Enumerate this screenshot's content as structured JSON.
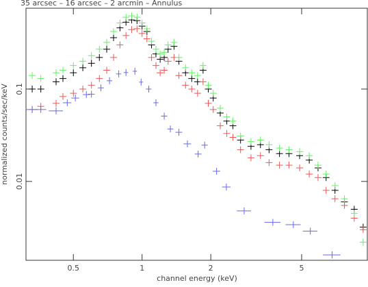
{
  "chart_data": {
    "type": "scatter",
    "title": "35 arcsec – 16 arcsec – 2 arcmin – Annulus",
    "x_label": "channel energy (keV)",
    "y_label": "normalized counts/sec/keV",
    "xlog": true,
    "ylog": true,
    "xlim": [
      0.31,
      9.7
    ],
    "ylim": [
      0.0014,
      0.75
    ],
    "xticks": [
      0.5,
      1,
      2,
      5
    ],
    "yticks": [
      0.01,
      0.1
    ],
    "series": [
      {
        "color": "#000000",
        "x": [
          0.33,
          0.36,
          0.42,
          0.45,
          0.5,
          0.55,
          0.6,
          0.65,
          0.7,
          0.75,
          0.8,
          0.85,
          0.9,
          0.95,
          1.0,
          1.05,
          1.1,
          1.15,
          1.2,
          1.25,
          1.3,
          1.38,
          1.45,
          1.55,
          1.65,
          1.75,
          1.85,
          1.95,
          2.05,
          2.2,
          2.35,
          2.5,
          2.7,
          3.0,
          3.3,
          3.6,
          4.0,
          4.4,
          4.9,
          5.4,
          5.9,
          6.4,
          7.0,
          7.7,
          8.5,
          9.3
        ],
        "values": [
          0.1,
          0.1,
          0.12,
          0.13,
          0.15,
          0.17,
          0.19,
          0.22,
          0.27,
          0.36,
          0.46,
          0.53,
          0.56,
          0.55,
          0.48,
          0.42,
          0.3,
          0.24,
          0.21,
          0.22,
          0.27,
          0.29,
          0.2,
          0.15,
          0.13,
          0.12,
          0.16,
          0.1,
          0.08,
          0.055,
          0.045,
          0.04,
          0.028,
          0.024,
          0.025,
          0.022,
          0.02,
          0.02,
          0.019,
          0.017,
          0.014,
          0.011,
          0.008,
          0.006,
          0.005,
          0.0032
        ]
      },
      {
        "color": "#ee5555",
        "x": [
          0.33,
          0.36,
          0.42,
          0.45,
          0.5,
          0.55,
          0.6,
          0.65,
          0.7,
          0.75,
          0.8,
          0.85,
          0.9,
          0.95,
          1.0,
          1.05,
          1.1,
          1.15,
          1.2,
          1.25,
          1.3,
          1.38,
          1.45,
          1.55,
          1.65,
          1.75,
          1.85,
          1.95,
          2.05,
          2.2,
          2.35,
          2.5,
          2.7,
          3.0,
          3.3,
          3.6,
          4.0,
          4.4,
          4.9,
          5.4,
          5.9,
          6.4,
          7.0,
          7.7,
          8.5,
          9.3
        ],
        "values": [
          0.06,
          0.065,
          0.07,
          0.083,
          0.09,
          0.1,
          0.11,
          0.13,
          0.16,
          0.22,
          0.3,
          0.38,
          0.44,
          0.45,
          0.4,
          0.35,
          0.22,
          0.18,
          0.15,
          0.16,
          0.2,
          0.22,
          0.14,
          0.11,
          0.1,
          0.09,
          0.12,
          0.07,
          0.06,
          0.04,
          0.033,
          0.03,
          0.022,
          0.018,
          0.019,
          0.016,
          0.015,
          0.015,
          0.014,
          0.012,
          0.011,
          0.008,
          0.0065,
          0.0055,
          0.004,
          0.003
        ]
      },
      {
        "color": "#66ee66",
        "x": [
          0.33,
          0.36,
          0.42,
          0.45,
          0.5,
          0.55,
          0.6,
          0.65,
          0.7,
          0.75,
          0.8,
          0.85,
          0.9,
          0.95,
          1.0,
          1.05,
          1.1,
          1.15,
          1.2,
          1.25,
          1.3,
          1.38,
          1.45,
          1.55,
          1.65,
          1.75,
          1.85,
          1.95,
          2.05,
          2.2,
          2.35,
          2.5,
          2.7,
          3.0,
          3.3,
          3.6,
          4.0,
          4.4,
          4.9,
          5.4,
          5.9,
          6.4,
          7.0,
          7.7,
          8.5,
          9.3
        ],
        "values": [
          0.14,
          0.13,
          0.15,
          0.16,
          0.18,
          0.2,
          0.23,
          0.27,
          0.32,
          0.42,
          0.52,
          0.6,
          0.62,
          0.6,
          0.52,
          0.45,
          0.33,
          0.27,
          0.24,
          0.25,
          0.3,
          0.32,
          0.22,
          0.17,
          0.15,
          0.14,
          0.18,
          0.11,
          0.09,
          0.062,
          0.05,
          0.045,
          0.031,
          0.027,
          0.028,
          0.025,
          0.023,
          0.022,
          0.021,
          0.019,
          0.015,
          0.012,
          0.009,
          0.0065,
          0.0045,
          0.0022
        ]
      },
      {
        "color": "#6666ee",
        "x": [
          0.33,
          0.36,
          0.42,
          0.47,
          0.51,
          0.57,
          0.6,
          0.66,
          0.72,
          0.79,
          0.85,
          0.93,
          0.99,
          1.07,
          1.15,
          1.25,
          1.33,
          1.45,
          1.58,
          1.76,
          1.88,
          2.12,
          2.34,
          2.8,
          3.74,
          4.6,
          5.46,
          6.8
        ],
        "xerr": [
          0.02,
          0.02,
          0.03,
          0.02,
          0.02,
          0.02,
          0.02,
          0.02,
          0.02,
          0.02,
          0.02,
          0.02,
          0.02,
          0.03,
          0.03,
          0.04,
          0.04,
          0.05,
          0.06,
          0.06,
          0.06,
          0.08,
          0.1,
          0.2,
          0.3,
          0.35,
          0.4,
          0.6
        ],
        "values": [
          0.06,
          0.06,
          0.058,
          0.071,
          0.08,
          0.087,
          0.088,
          0.103,
          0.123,
          0.146,
          0.151,
          0.156,
          0.119,
          0.1,
          0.071,
          0.051,
          0.037,
          0.034,
          0.0255,
          0.0198,
          0.0247,
          0.0129,
          0.0087,
          0.0048,
          0.0036,
          0.0034,
          0.0029,
          0.0016
        ]
      }
    ]
  }
}
